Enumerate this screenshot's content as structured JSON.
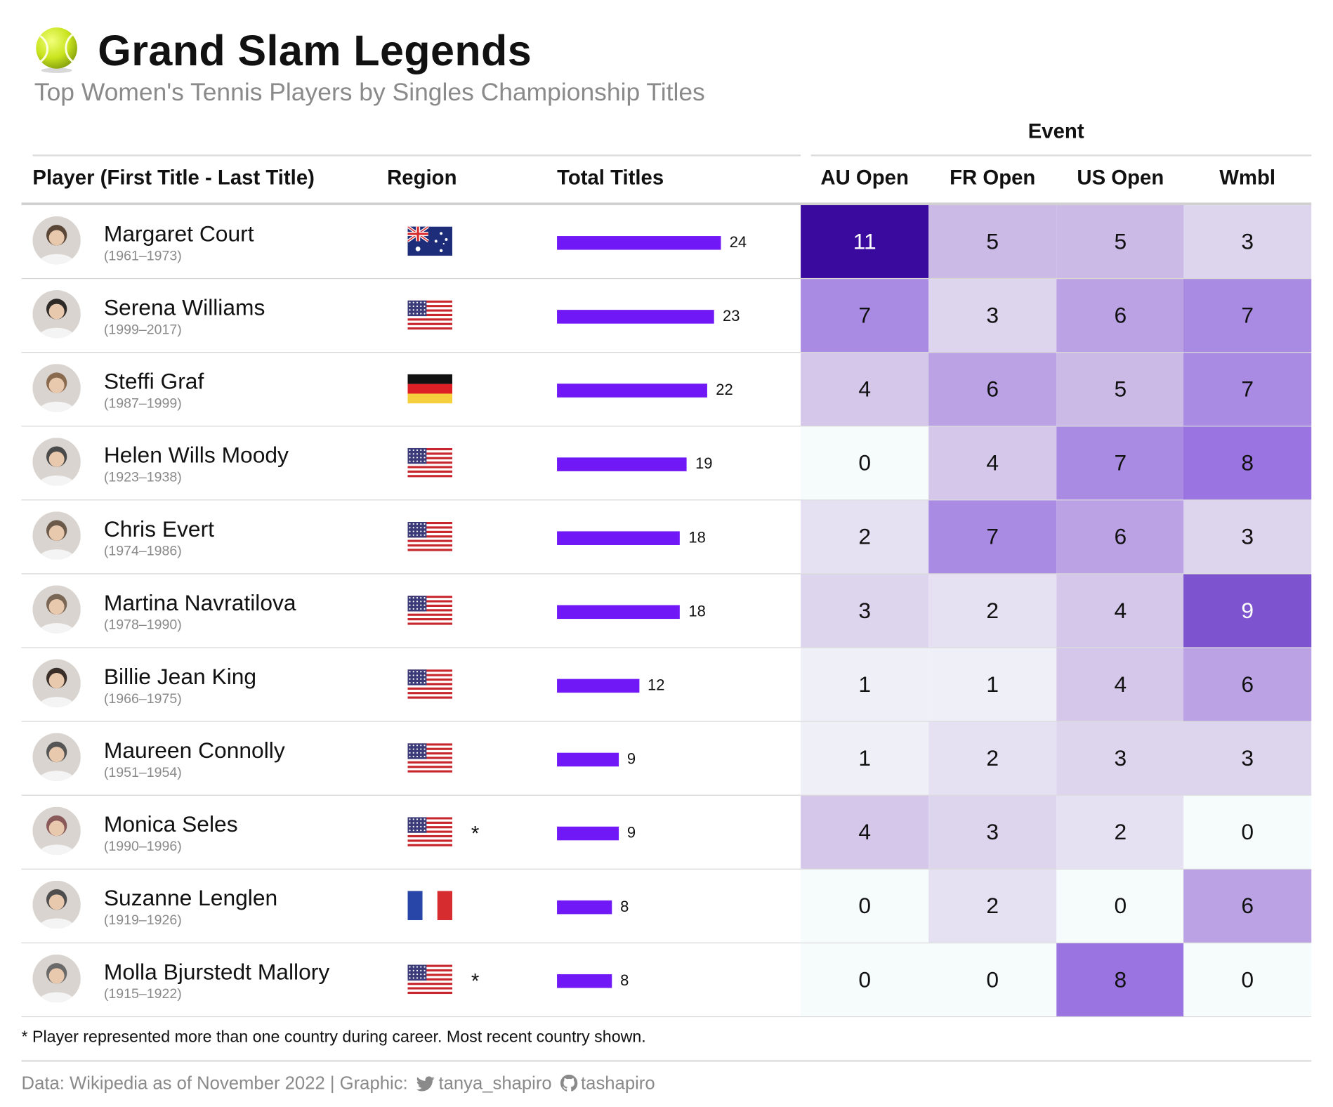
{
  "header": {
    "title": "Grand Slam Legends",
    "subtitle": "Top Women's Tennis Players by Singles Championship Titles",
    "icon": "tennis-ball-icon"
  },
  "columns": {
    "event_group": "Event",
    "player": "Player (First Title - Last Title)",
    "region": "Region",
    "total": "Total Titles",
    "au": "AU Open",
    "fr": "FR Open",
    "us": "US Open",
    "wm": "Wmbl"
  },
  "colors": {
    "bar": "#7018F5",
    "scale_low": "#F6FCFB",
    "scale_high": "#3A0A9E"
  },
  "footnote": "* Player represented more than one country during career. Most recent country shown.",
  "credit": {
    "prefix": "Data: Wikipedia as of November 2022 | Graphic:",
    "twitter": "tanya_shapiro",
    "github": "tashapiro"
  },
  "chart_data": {
    "type": "table",
    "title": "Grand Slam Legends",
    "subtitle": "Top Women's Tennis Players by Singles Championship Titles",
    "categories": [
      "AU Open",
      "FR Open",
      "US Open",
      "Wmbl"
    ],
    "xlim": [
      0,
      24
    ],
    "players": [
      {
        "name": "Margaret Court",
        "years": "(1961–1973)",
        "region": "Australia",
        "flag": "au",
        "multi_country": false,
        "total": 24,
        "au": 11,
        "fr": 5,
        "us": 5,
        "wm": 3
      },
      {
        "name": "Serena Williams",
        "years": "(1999–2017)",
        "region": "United States",
        "flag": "us",
        "multi_country": false,
        "total": 23,
        "au": 7,
        "fr": 3,
        "us": 6,
        "wm": 7
      },
      {
        "name": "Steffi Graf",
        "years": "(1987–1999)",
        "region": "Germany",
        "flag": "de",
        "multi_country": false,
        "total": 22,
        "au": 4,
        "fr": 6,
        "us": 5,
        "wm": 7
      },
      {
        "name": "Helen Wills Moody",
        "years": "(1923–1938)",
        "region": "United States",
        "flag": "us",
        "multi_country": false,
        "total": 19,
        "au": 0,
        "fr": 4,
        "us": 7,
        "wm": 8
      },
      {
        "name": "Chris Evert",
        "years": "(1974–1986)",
        "region": "United States",
        "flag": "us",
        "multi_country": false,
        "total": 18,
        "au": 2,
        "fr": 7,
        "us": 6,
        "wm": 3
      },
      {
        "name": "Martina Navratilova",
        "years": "(1978–1990)",
        "region": "United States",
        "flag": "us",
        "multi_country": false,
        "total": 18,
        "au": 3,
        "fr": 2,
        "us": 4,
        "wm": 9
      },
      {
        "name": "Billie Jean King",
        "years": "(1966–1975)",
        "region": "United States",
        "flag": "us",
        "multi_country": false,
        "total": 12,
        "au": 1,
        "fr": 1,
        "us": 4,
        "wm": 6
      },
      {
        "name": "Maureen Connolly",
        "years": "(1951–1954)",
        "region": "United States",
        "flag": "us",
        "multi_country": false,
        "total": 9,
        "au": 1,
        "fr": 2,
        "us": 3,
        "wm": 3
      },
      {
        "name": "Monica Seles",
        "years": "(1990–1996)",
        "region": "United States",
        "flag": "us",
        "multi_country": true,
        "total": 9,
        "au": 4,
        "fr": 3,
        "us": 2,
        "wm": 0
      },
      {
        "name": "Suzanne Lenglen",
        "years": "(1919–1926)",
        "region": "France",
        "flag": "fr",
        "multi_country": false,
        "total": 8,
        "au": 0,
        "fr": 2,
        "us": 0,
        "wm": 6
      },
      {
        "name": "Molla Bjurstedt Mallory",
        "years": "(1915–1922)",
        "region": "United States",
        "flag": "us",
        "multi_country": true,
        "total": 8,
        "au": 0,
        "fr": 0,
        "us": 8,
        "wm": 0
      }
    ]
  }
}
